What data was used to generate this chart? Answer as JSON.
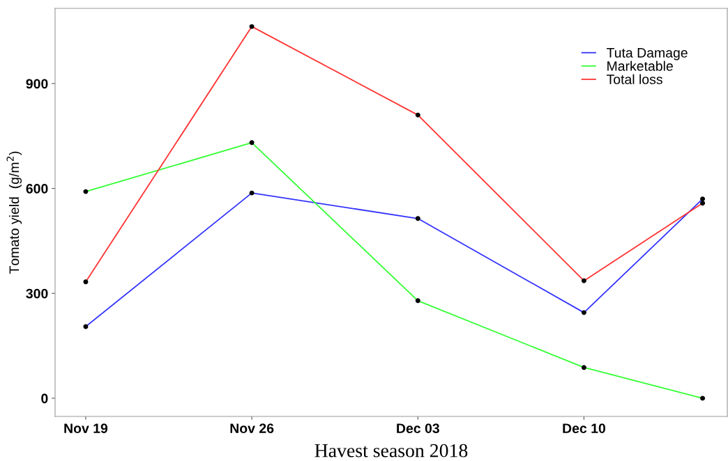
{
  "chart_data": {
    "type": "line",
    "xlabel": "Havest season 2018",
    "ylabel": "Tomato yield  (g/m$^{2}$)",
    "x": [
      "2018-11-19",
      "2018-11-26",
      "2018-12-03",
      "2018-12-10",
      "2018-12-15"
    ],
    "series": [
      {
        "name": "Tuta Damage",
        "color": "#3333ff",
        "values": [
          205,
          587,
          514,
          245,
          570
        ]
      },
      {
        "name": "Marketable",
        "color": "#33ff33",
        "values": [
          591,
          731,
          279,
          88,
          0
        ]
      },
      {
        "name": "Total loss",
        "color": "#ff3333",
        "values": [
          333,
          1063,
          810,
          336,
          558
        ]
      }
    ],
    "xlim": [
      "2018-11-17T17:00",
      "2018-12-16T01:00"
    ],
    "xticks": [
      {
        "value": "2018-11-19",
        "label": "Nov 19"
      },
      {
        "value": "2018-11-26",
        "label": "Nov 26"
      },
      {
        "value": "2018-12-03",
        "label": "Dec 03"
      },
      {
        "value": "2018-12-10",
        "label": "Dec 10"
      }
    ],
    "ylim": [
      -52,
      1115
    ],
    "yticks": [
      0,
      300,
      600,
      900
    ],
    "grid": false,
    "legend": "top right",
    "marker": "circle",
    "line_style": "solid"
  }
}
